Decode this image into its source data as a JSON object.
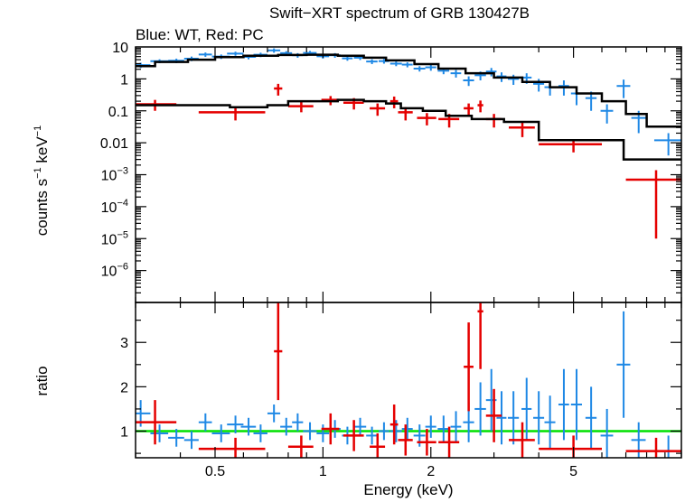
{
  "chart_data": {
    "type": "scatter",
    "title": "Swift−XRT spectrum of GRB 130427B",
    "subtitle": "Blue: WT, Red: PC",
    "xlabel": "Energy (keV)",
    "x_scale": "log",
    "xlim": [
      0.3,
      10
    ],
    "x_ticks": [
      {
        "value": 0.5,
        "label": "0.5"
      },
      {
        "value": 1,
        "label": "1"
      },
      {
        "value": 2,
        "label": "2"
      },
      {
        "value": 5,
        "label": "5"
      }
    ],
    "colors": {
      "WT": "#1e88e5",
      "PC": "#e50000",
      "model": "#000000",
      "unity": "#00e000"
    },
    "panels": [
      {
        "name": "spectrum",
        "ylabel_parts": {
          "main": "counts s",
          "exp1": "−1",
          "mid": " keV",
          "exp2": "−1"
        },
        "y_scale": "log",
        "ylim": [
          1e-07,
          10
        ],
        "y_ticks": [
          {
            "value": 10,
            "label": "10"
          },
          {
            "value": 1,
            "label": "1"
          },
          {
            "value": 0.1,
            "label": "0.1"
          },
          {
            "value": 0.01,
            "label": "0.01"
          },
          {
            "value": 0.001,
            "base": "10",
            "exp": "−3"
          },
          {
            "value": 0.0001,
            "base": "10",
            "exp": "−4"
          },
          {
            "value": 1e-05,
            "base": "10",
            "exp": "−5"
          },
          {
            "value": 1e-06,
            "base": "10",
            "exp": "−6"
          }
        ],
        "series": [
          {
            "key": "WT",
            "points": [
              [
                0.31,
                0.02,
                2.7,
                0.5
              ],
              [
                0.35,
                0.02,
                3.6,
                0.5
              ],
              [
                0.39,
                0.02,
                3.7,
                0.6
              ],
              [
                0.43,
                0.02,
                4.3,
                0.7
              ],
              [
                0.47,
                0.02,
                5.8,
                0.9
              ],
              [
                0.52,
                0.03,
                5.0,
                0.8
              ],
              [
                0.57,
                0.03,
                6.2,
                0.9
              ],
              [
                0.62,
                0.03,
                4.9,
                0.8
              ],
              [
                0.67,
                0.03,
                5.7,
                0.9
              ],
              [
                0.73,
                0.03,
                7.8,
                1.2
              ],
              [
                0.79,
                0.03,
                6.4,
                1.0
              ],
              [
                0.85,
                0.03,
                5.5,
                0.9
              ],
              [
                0.92,
                0.04,
                6.5,
                1.0
              ],
              [
                1.0,
                0.04,
                5.1,
                0.8
              ],
              [
                1.08,
                0.04,
                5.5,
                0.9
              ],
              [
                1.17,
                0.04,
                4.4,
                0.7
              ],
              [
                1.27,
                0.05,
                4.6,
                0.7
              ],
              [
                1.37,
                0.05,
                3.5,
                0.6
              ],
              [
                1.48,
                0.05,
                3.6,
                0.6
              ],
              [
                1.6,
                0.06,
                3.0,
                0.5
              ],
              [
                1.72,
                0.06,
                2.8,
                0.5
              ],
              [
                1.86,
                0.07,
                2.1,
                0.4
              ],
              [
                2.0,
                0.07,
                2.3,
                0.5
              ],
              [
                2.17,
                0.08,
                1.8,
                0.4
              ],
              [
                2.35,
                0.08,
                1.5,
                0.4
              ],
              [
                2.55,
                0.09,
                0.9,
                0.3
              ],
              [
                2.75,
                0.1,
                1.3,
                0.4
              ],
              [
                2.95,
                0.1,
                1.7,
                0.5
              ],
              [
                3.15,
                0.1,
                1.2,
                0.4
              ],
              [
                3.4,
                0.12,
                1.0,
                0.35
              ],
              [
                3.7,
                0.12,
                1.1,
                0.4
              ],
              [
                4.0,
                0.14,
                0.7,
                0.3
              ],
              [
                4.3,
                0.15,
                0.55,
                0.25
              ],
              [
                4.7,
                0.16,
                0.6,
                0.3
              ],
              [
                5.1,
                0.18,
                0.35,
                0.2
              ],
              [
                5.6,
                0.2,
                0.25,
                0.15
              ],
              [
                6.2,
                0.25,
                0.1,
                0.06
              ],
              [
                6.9,
                0.3,
                0.6,
                0.35
              ],
              [
                7.6,
                0.35,
                0.06,
                0.04
              ],
              [
                9.2,
                0.8,
                0.012,
                0.008
              ]
            ]
          },
          {
            "key": "PC",
            "points": [
              [
                0.34,
                0.05,
                0.16,
                0.06
              ],
              [
                0.57,
                0.12,
                0.09,
                0.04
              ],
              [
                0.75,
                0.02,
                0.5,
                0.2
              ],
              [
                0.87,
                0.07,
                0.14,
                0.05
              ],
              [
                1.05,
                0.06,
                0.22,
                0.07
              ],
              [
                1.22,
                0.08,
                0.18,
                0.07
              ],
              [
                1.42,
                0.07,
                0.12,
                0.05
              ],
              [
                1.58,
                0.04,
                0.2,
                0.08
              ],
              [
                1.7,
                0.08,
                0.09,
                0.04
              ],
              [
                1.95,
                0.12,
                0.06,
                0.025
              ],
              [
                2.25,
                0.15,
                0.055,
                0.025
              ],
              [
                2.55,
                0.08,
                0.12,
                0.05
              ],
              [
                2.75,
                0.05,
                0.15,
                0.06
              ],
              [
                3.0,
                0.15,
                0.055,
                0.025
              ],
              [
                3.6,
                0.3,
                0.03,
                0.015
              ],
              [
                5.0,
                1.0,
                0.009,
                0.004
              ],
              [
                8.5,
                1.5,
                0.0007,
                0.00069
              ]
            ]
          }
        ],
        "models": [
          {
            "key": "WT",
            "steps": [
              [
                0.3,
                2.5
              ],
              [
                0.34,
                3.4
              ],
              [
                0.42,
                4.0
              ],
              [
                0.5,
                4.8
              ],
              [
                0.6,
                5.3
              ],
              [
                0.75,
                5.6
              ],
              [
                0.9,
                5.7
              ],
              [
                1.1,
                5.3
              ],
              [
                1.3,
                4.6
              ],
              [
                1.5,
                3.8
              ],
              [
                1.8,
                2.9
              ],
              [
                2.1,
                2.1
              ],
              [
                2.5,
                1.5
              ],
              [
                3.0,
                1.1
              ],
              [
                3.6,
                0.8
              ],
              [
                4.3,
                0.55
              ],
              [
                5.1,
                0.35
              ],
              [
                6.0,
                0.2
              ],
              [
                7.0,
                0.08
              ],
              [
                8.0,
                0.032
              ],
              [
                10,
                0.032
              ]
            ]
          },
          {
            "key": "PC",
            "steps": [
              [
                0.3,
                0.15
              ],
              [
                0.42,
                0.15
              ],
              [
                0.55,
                0.13
              ],
              [
                0.7,
                0.15
              ],
              [
                0.8,
                0.2
              ],
              [
                0.95,
                0.2
              ],
              [
                1.1,
                0.22
              ],
              [
                1.3,
                0.2
              ],
              [
                1.5,
                0.17
              ],
              [
                1.65,
                0.12
              ],
              [
                1.9,
                0.1
              ],
              [
                2.2,
                0.07
              ],
              [
                2.6,
                0.055
              ],
              [
                3.2,
                0.045
              ],
              [
                4.0,
                0.012
              ],
              [
                6.9,
                0.003
              ],
              [
                10,
                0.003
              ]
            ]
          }
        ]
      },
      {
        "name": "ratio",
        "ylabel": "ratio",
        "y_scale": "linear",
        "ylim": [
          0.4,
          3.9
        ],
        "y_ticks": [
          {
            "value": 1,
            "label": "1"
          },
          {
            "value": 2,
            "label": "2"
          },
          {
            "value": 3,
            "label": "3"
          }
        ],
        "unity_line": 1,
        "series": [
          {
            "key": "WT",
            "points": [
              [
                0.31,
                0.02,
                1.4,
                0.3
              ],
              [
                0.35,
                0.02,
                0.95,
                0.2
              ],
              [
                0.39,
                0.02,
                0.85,
                0.2
              ],
              [
                0.43,
                0.02,
                0.8,
                0.2
              ],
              [
                0.47,
                0.02,
                1.2,
                0.2
              ],
              [
                0.52,
                0.03,
                0.95,
                0.2
              ],
              [
                0.57,
                0.03,
                1.15,
                0.2
              ],
              [
                0.62,
                0.03,
                1.1,
                0.2
              ],
              [
                0.67,
                0.03,
                0.95,
                0.2
              ],
              [
                0.73,
                0.03,
                1.4,
                0.2
              ],
              [
                0.79,
                0.03,
                1.1,
                0.2
              ],
              [
                0.85,
                0.03,
                1.2,
                0.2
              ],
              [
                0.92,
                0.04,
                1.0,
                0.2
              ],
              [
                1.0,
                0.04,
                0.95,
                0.2
              ],
              [
                1.08,
                0.04,
                1.05,
                0.2
              ],
              [
                1.17,
                0.04,
                0.9,
                0.2
              ],
              [
                1.27,
                0.05,
                1.1,
                0.2
              ],
              [
                1.37,
                0.05,
                0.9,
                0.2
              ],
              [
                1.48,
                0.05,
                1.0,
                0.2
              ],
              [
                1.6,
                0.06,
                1.0,
                0.25
              ],
              [
                1.72,
                0.06,
                1.05,
                0.25
              ],
              [
                1.86,
                0.07,
                0.9,
                0.25
              ],
              [
                2.0,
                0.07,
                1.1,
                0.25
              ],
              [
                2.17,
                0.08,
                1.05,
                0.3
              ],
              [
                2.35,
                0.08,
                1.1,
                0.35
              ],
              [
                2.55,
                0.09,
                1.2,
                0.45
              ],
              [
                2.75,
                0.1,
                1.5,
                0.6
              ],
              [
                2.95,
                0.1,
                1.7,
                0.7
              ],
              [
                3.15,
                0.1,
                1.3,
                0.6
              ],
              [
                3.4,
                0.12,
                1.3,
                0.6
              ],
              [
                3.7,
                0.12,
                1.5,
                0.7
              ],
              [
                4.0,
                0.14,
                1.3,
                0.6
              ],
              [
                4.3,
                0.15,
                1.2,
                0.6
              ],
              [
                4.7,
                0.16,
                1.6,
                0.8
              ],
              [
                5.1,
                0.18,
                1.6,
                0.8
              ],
              [
                5.6,
                0.2,
                1.3,
                0.7
              ],
              [
                6.2,
                0.25,
                0.9,
                0.6
              ],
              [
                6.9,
                0.3,
                2.5,
                1.2
              ],
              [
                7.6,
                0.35,
                0.8,
                0.4
              ],
              [
                9.2,
                0.8,
                0.55,
                0.35
              ]
            ]
          },
          {
            "key": "PC",
            "points": [
              [
                0.34,
                0.05,
                1.2,
                0.5
              ],
              [
                0.57,
                0.12,
                0.6,
                0.25
              ],
              [
                0.75,
                0.02,
                2.8,
                1.1
              ],
              [
                0.87,
                0.07,
                0.65,
                0.25
              ],
              [
                1.05,
                0.06,
                1.05,
                0.35
              ],
              [
                1.22,
                0.08,
                0.9,
                0.35
              ],
              [
                1.42,
                0.07,
                0.65,
                0.3
              ],
              [
                1.58,
                0.04,
                1.15,
                0.45
              ],
              [
                1.7,
                0.08,
                0.8,
                0.35
              ],
              [
                1.95,
                0.12,
                0.75,
                0.3
              ],
              [
                2.25,
                0.15,
                0.75,
                0.35
              ],
              [
                2.55,
                0.08,
                2.45,
                1.0
              ],
              [
                2.75,
                0.05,
                3.7,
                1.3
              ],
              [
                3.0,
                0.15,
                1.35,
                0.6
              ],
              [
                3.6,
                0.3,
                0.8,
                0.4
              ],
              [
                5.0,
                1.0,
                0.6,
                0.3
              ],
              [
                8.5,
                1.5,
                0.55,
                0.3
              ]
            ]
          }
        ]
      }
    ]
  }
}
